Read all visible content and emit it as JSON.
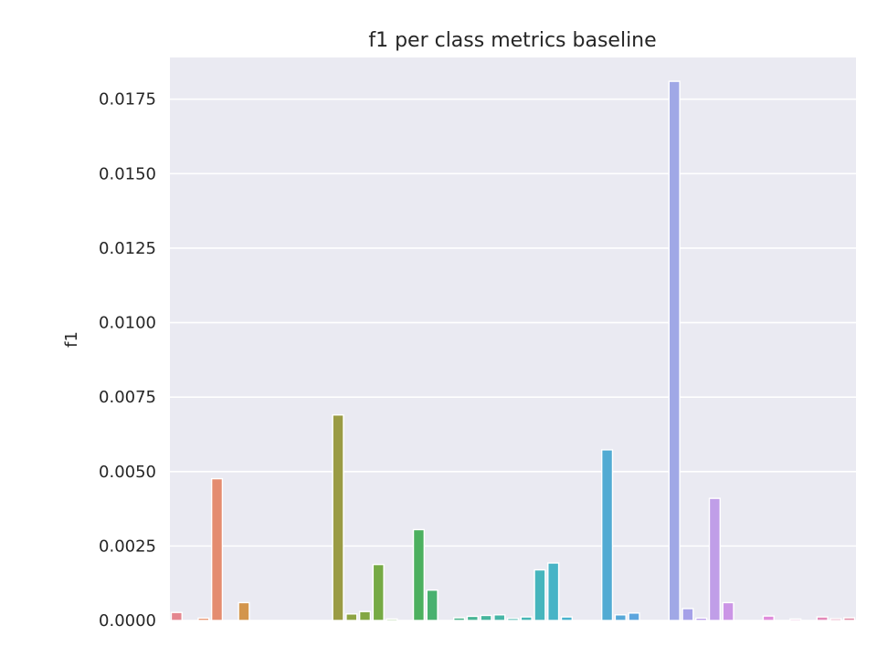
{
  "chart_data": {
    "type": "bar",
    "title": "f1 per class metrics baseline",
    "xlabel": "",
    "ylabel": "f1",
    "ylim": [
      0,
      0.0189
    ],
    "yticks": [
      "0.0000",
      "0.0025",
      "0.0050",
      "0.0075",
      "0.0100",
      "0.0125",
      "0.0150",
      "0.0175"
    ],
    "ytick_values": [
      0,
      0.0025,
      0.005,
      0.0075,
      0.01,
      0.0125,
      0.015,
      0.0175
    ],
    "grid": true,
    "background": "#eaeaf2",
    "gridColor": "#ffffff",
    "values": [
      0.00027,
      0,
      8e-05,
      0.00476,
      0,
      0.0006,
      0,
      0,
      0,
      0,
      0,
      0,
      0.0069,
      0.00022,
      0.0003,
      0.00188,
      5e-05,
      0,
      0.00305,
      0.00102,
      0,
      9e-05,
      0.00014,
      0.00017,
      0.00019,
      7e-05,
      0.00012,
      0.0017,
      0.00193,
      0.00012,
      0,
      0,
      0.00573,
      0.00019,
      0.00025,
      0,
      0,
      0.0181,
      0.0004,
      8e-05,
      0.0041,
      0.0006,
      0,
      0,
      0.00015,
      0,
      5e-05,
      0,
      0.00012,
      6e-05,
      9e-05
    ],
    "colors": [
      "#e4868f",
      "#e58a7f",
      "#e7906a",
      "#e48c6f",
      "#d99550",
      "#d3954c",
      "#c99a4a",
      "#bf9d47",
      "#b59f45",
      "#aca144",
      "#a3a243",
      "#9ea444",
      "#9a9b44",
      "#8ea444",
      "#83a744",
      "#76aa45",
      "#66ad4a",
      "#57b04f",
      "#4cb05f",
      "#49b16f",
      "#48b27d",
      "#47b389",
      "#47b494",
      "#46b59d",
      "#46b5a6",
      "#46b5ae",
      "#46b6b5",
      "#46b5bd",
      "#47b4c6",
      "#48b2cd",
      "#4ab0d6",
      "#4daee0",
      "#52abd3",
      "#57a8d8",
      "#5da5de",
      "#66a1e4",
      "#7e9be9",
      "#a0a8e6",
      "#a5a0e8",
      "#b596e8",
      "#c09ee8",
      "#cb95e6",
      "#d390e4",
      "#da8ee0",
      "#df8bdb",
      "#e18ad3",
      "#e389ca",
      "#e489c1",
      "#e389b8",
      "#e28aae",
      "#e18ba5"
    ]
  }
}
